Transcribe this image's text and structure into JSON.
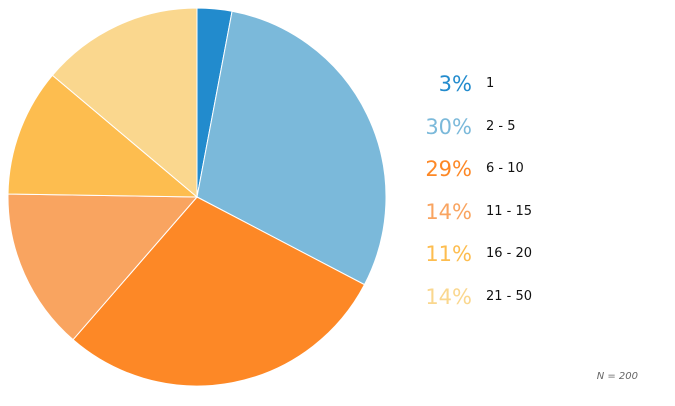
{
  "chart_data": {
    "type": "pie",
    "categories": [
      "1",
      "2 - 5",
      "6 - 10",
      "11 - 15",
      "16 - 20",
      "21 - 50"
    ],
    "values": [
      3,
      30,
      29,
      14,
      11,
      14
    ],
    "value_labels": [
      "3%",
      "30%",
      "29%",
      "14%",
      "11%",
      "14%"
    ],
    "colors": [
      "#228bcd",
      "#7bb9da",
      "#fd8826",
      "#f9a460",
      "#fdbd4f",
      "#fad78e"
    ],
    "start_angle_deg": 0,
    "direction": "clockwise",
    "legend_position": "right",
    "note": "N = 200"
  }
}
